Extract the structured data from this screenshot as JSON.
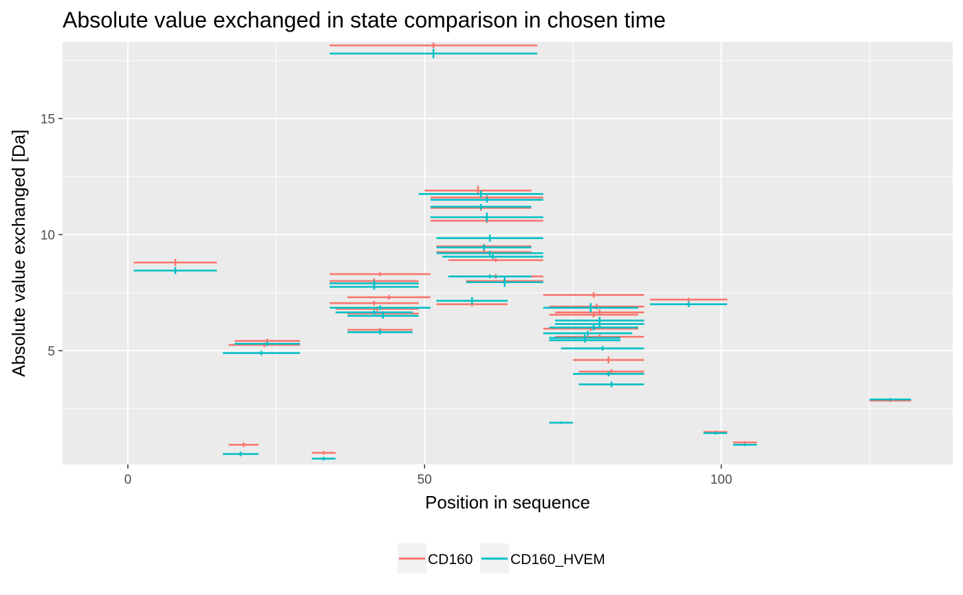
{
  "chart_data": {
    "type": "errorbar-segments",
    "title": "Absolute value exchanged in state comparison in chosen time",
    "xlabel": "Position in sequence",
    "ylabel": "Absolute value exchanged [Da]",
    "xlim": [
      -11,
      139
    ],
    "ylim": [
      0.1,
      18.3
    ],
    "x_ticks": [
      0,
      50,
      100
    ],
    "y_ticks": [
      5,
      10,
      15
    ],
    "x_tick_labels": [
      "0",
      "50",
      "100"
    ],
    "y_tick_labels": [
      "5",
      "10",
      "15"
    ],
    "grid": true,
    "panel_background": "#ebebeb",
    "grid_color": "#ffffff",
    "legend_position": "bottom",
    "series": [
      {
        "name": "CD160",
        "color": "#f8766d",
        "segments": [
          {
            "start": 1,
            "end": 15,
            "value": 8.8,
            "err": 0.15
          },
          {
            "start": 17,
            "end": 22,
            "value": 0.95,
            "err": 0.1
          },
          {
            "start": 17,
            "end": 29,
            "value": 5.25,
            "err": 0.1
          },
          {
            "start": 18,
            "end": 29,
            "value": 5.42,
            "err": 0.1
          },
          {
            "start": 31,
            "end": 35,
            "value": 0.6,
            "err": 0.08
          },
          {
            "start": 34,
            "end": 69,
            "value": 18.15,
            "err": 0.12
          },
          {
            "start": 34,
            "end": 51,
            "value": 8.3,
            "err": 0.08
          },
          {
            "start": 34,
            "end": 49,
            "value": 8.0,
            "err": 0.12
          },
          {
            "start": 34,
            "end": 49,
            "value": 7.05,
            "err": 0.1
          },
          {
            "start": 37,
            "end": 51,
            "value": 7.3,
            "err": 0.1
          },
          {
            "start": 35,
            "end": 49,
            "value": 6.8,
            "err": 0.1
          },
          {
            "start": 37,
            "end": 49,
            "value": 6.6,
            "err": 0.1
          },
          {
            "start": 37,
            "end": 48,
            "value": 5.9,
            "err": 0.08
          },
          {
            "start": 50,
            "end": 68,
            "value": 11.9,
            "err": 0.2
          },
          {
            "start": 51,
            "end": 70,
            "value": 11.6,
            "err": 0.1
          },
          {
            "start": 51,
            "end": 68,
            "value": 11.15,
            "err": 0.12
          },
          {
            "start": 51,
            "end": 70,
            "value": 10.6,
            "err": 0.1
          },
          {
            "start": 52,
            "end": 68,
            "value": 9.5,
            "err": 0.1
          },
          {
            "start": 52,
            "end": 68,
            "value": 9.25,
            "err": 0.1
          },
          {
            "start": 54,
            "end": 70,
            "value": 8.9,
            "err": 0.08
          },
          {
            "start": 54,
            "end": 70,
            "value": 8.2,
            "err": 0.1
          },
          {
            "start": 57,
            "end": 70,
            "value": 8.0,
            "err": 0.1
          },
          {
            "start": 52,
            "end": 64,
            "value": 7.0,
            "err": 0.1
          },
          {
            "start": 70,
            "end": 87,
            "value": 7.4,
            "err": 0.12
          },
          {
            "start": 71,
            "end": 87,
            "value": 6.9,
            "err": 0.12
          },
          {
            "start": 72,
            "end": 87,
            "value": 6.65,
            "err": 0.12
          },
          {
            "start": 71,
            "end": 86,
            "value": 6.55,
            "err": 0.12
          },
          {
            "start": 70,
            "end": 86,
            "value": 5.95,
            "err": 0.1
          },
          {
            "start": 72,
            "end": 87,
            "value": 5.6,
            "err": 0.1
          },
          {
            "start": 75,
            "end": 87,
            "value": 4.6,
            "err": 0.15
          },
          {
            "start": 76,
            "end": 87,
            "value": 4.1,
            "err": 0.1
          },
          {
            "start": 88,
            "end": 101,
            "value": 7.2,
            "err": 0.08
          },
          {
            "start": 97,
            "end": 101,
            "value": 1.5,
            "err": 0.06
          },
          {
            "start": 102,
            "end": 106,
            "value": 1.05,
            "err": 0.06
          },
          {
            "start": 125,
            "end": 132,
            "value": 2.85,
            "err": 0.06
          }
        ]
      },
      {
        "name": "CD160_HVEM",
        "color": "#00bfc4",
        "segments": [
          {
            "start": 1,
            "end": 15,
            "value": 8.45,
            "err": 0.15
          },
          {
            "start": 16,
            "end": 22,
            "value": 0.55,
            "err": 0.1
          },
          {
            "start": 16,
            "end": 29,
            "value": 4.9,
            "err": 0.1
          },
          {
            "start": 18,
            "end": 29,
            "value": 5.3,
            "err": 0.1
          },
          {
            "start": 31,
            "end": 35,
            "value": 0.35,
            "err": 0.08
          },
          {
            "start": 34,
            "end": 69,
            "value": 17.8,
            "err": 0.2
          },
          {
            "start": 34,
            "end": 49,
            "value": 7.9,
            "err": 0.12
          },
          {
            "start": 34,
            "end": 49,
            "value": 7.75,
            "err": 0.12
          },
          {
            "start": 34,
            "end": 51,
            "value": 6.85,
            "err": 0.1
          },
          {
            "start": 35,
            "end": 48,
            "value": 6.65,
            "err": 0.1
          },
          {
            "start": 37,
            "end": 49,
            "value": 6.5,
            "err": 0.12
          },
          {
            "start": 37,
            "end": 48,
            "value": 5.8,
            "err": 0.1
          },
          {
            "start": 49,
            "end": 70,
            "value": 11.75,
            "err": 0.15
          },
          {
            "start": 51,
            "end": 70,
            "value": 11.5,
            "err": 0.12
          },
          {
            "start": 51,
            "end": 68,
            "value": 11.2,
            "err": 0.12
          },
          {
            "start": 51,
            "end": 70,
            "value": 10.75,
            "err": 0.2
          },
          {
            "start": 52,
            "end": 70,
            "value": 9.85,
            "err": 0.15
          },
          {
            "start": 52,
            "end": 68,
            "value": 9.45,
            "err": 0.12
          },
          {
            "start": 52,
            "end": 70,
            "value": 9.2,
            "err": 0.1
          },
          {
            "start": 53,
            "end": 70,
            "value": 9.05,
            "err": 0.1
          },
          {
            "start": 54,
            "end": 68,
            "value": 8.2,
            "err": 0.08
          },
          {
            "start": 57,
            "end": 70,
            "value": 7.95,
            "err": 0.2
          },
          {
            "start": 52,
            "end": 64,
            "value": 7.15,
            "err": 0.15
          },
          {
            "start": 70,
            "end": 86,
            "value": 6.85,
            "err": 0.2
          },
          {
            "start": 72,
            "end": 87,
            "value": 6.3,
            "err": 0.15
          },
          {
            "start": 72,
            "end": 87,
            "value": 6.15,
            "err": 0.15
          },
          {
            "start": 71,
            "end": 86,
            "value": 6.0,
            "err": 0.12
          },
          {
            "start": 70,
            "end": 85,
            "value": 5.75,
            "err": 0.1
          },
          {
            "start": 71,
            "end": 83,
            "value": 5.55,
            "err": 0.15
          },
          {
            "start": 71,
            "end": 83,
            "value": 5.45,
            "err": 0.1
          },
          {
            "start": 73,
            "end": 87,
            "value": 5.1,
            "err": 0.1
          },
          {
            "start": 75,
            "end": 87,
            "value": 4.0,
            "err": 0.1
          },
          {
            "start": 76,
            "end": 87,
            "value": 3.55,
            "err": 0.12
          },
          {
            "start": 71,
            "end": 75,
            "value": 1.9,
            "err": 0.05
          },
          {
            "start": 88,
            "end": 101,
            "value": 7.0,
            "err": 0.12
          },
          {
            "start": 97,
            "end": 101,
            "value": 1.45,
            "err": 0.06
          },
          {
            "start": 102,
            "end": 106,
            "value": 0.95,
            "err": 0.06
          },
          {
            "start": 125,
            "end": 132,
            "value": 2.9,
            "err": 0.06
          }
        ]
      }
    ]
  }
}
